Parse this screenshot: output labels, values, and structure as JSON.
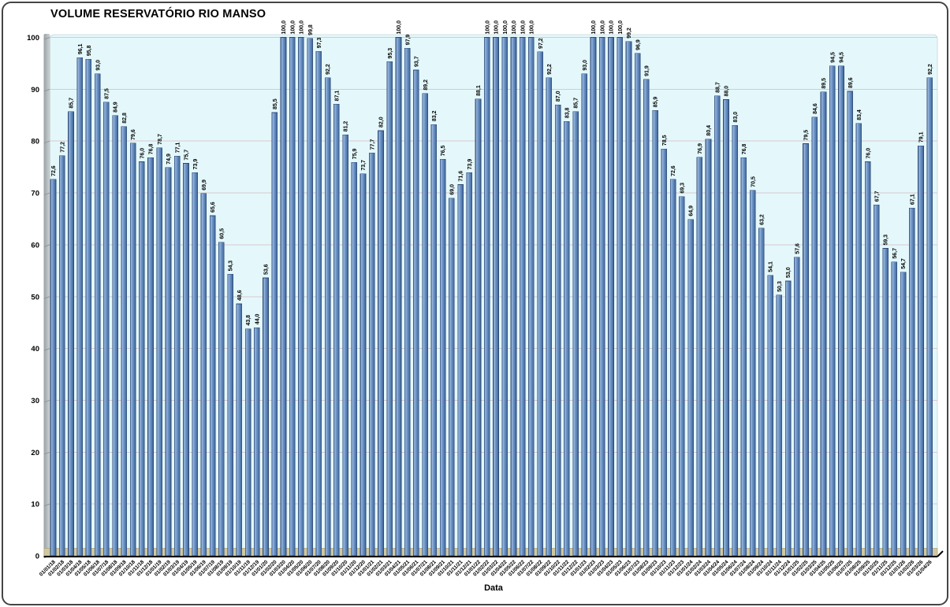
{
  "chart_data": {
    "type": "bar",
    "title": "VOLUME RESERVATÓRIO RIO MANSO",
    "xlabel": "Data",
    "ylabel": "",
    "ylim": [
      0,
      100
    ],
    "yticks": [
      0,
      10,
      20,
      30,
      40,
      50,
      60,
      70,
      80,
      90,
      100
    ],
    "grid": true,
    "legend": false,
    "value_label_rotation": 90,
    "x_label_rotation": 45,
    "decimal_separator": ",",
    "categories": [
      "01/01/18",
      "01/02/18",
      "01/03/18",
      "01/04/18",
      "01/05/18",
      "01/06/18",
      "01/07/18",
      "01/08/18",
      "01/09/18",
      "01/10/18",
      "01/11/18",
      "01/12/18",
      "01/01/19",
      "01/02/19",
      "01/03/19",
      "01/04/19",
      "01/05/19",
      "01/06/19",
      "01/07/19",
      "01/08/19",
      "01/09/19",
      "01/10/19",
      "01/11/19",
      "01/12/19",
      "01/01/20",
      "01/02/20",
      "01/03/20",
      "01/04/20",
      "01/05/20",
      "01/06/20",
      "01/07/20",
      "01/08/20",
      "01/09/20",
      "01/10/20",
      "01/11/20",
      "01/12/20",
      "01/01/21",
      "01/02/21",
      "01/03/21",
      "01/04/21",
      "01/05/21",
      "01/06/21",
      "01/07/21",
      "01/08/21",
      "01/09/21",
      "01/10/21",
      "01/11/21",
      "01/12/21",
      "01/01/22",
      "01/02/22",
      "01/03/22",
      "01/04/22",
      "01/05/22",
      "01/06/22",
      "01/07/22",
      "01/08/22",
      "01/09/22",
      "01/10/22",
      "01/11/22",
      "01/12/22",
      "01/01/23",
      "01/02/23",
      "01/03/23",
      "01/04/23",
      "01/05/23",
      "01/06/23",
      "01/07/23",
      "01/08/23",
      "01/09/23",
      "01/10/23",
      "01/11/23",
      "01/12/23",
      "01/01/24",
      "01/02/24",
      "01/03/24",
      "01/04/24",
      "01/05/24",
      "01/06/24",
      "01/07/24",
      "01/08/24",
      "01/09/24",
      "01/10/24",
      "01/11/24",
      "01/12/24",
      "01/01/25",
      "01/02/25",
      "01/03/25",
      "01/04/25",
      "01/05/25",
      "01/06/25",
      "01/07/25",
      "01/08/25",
      "01/09/25",
      "01/10/25",
      "01/11/25",
      "01/12/25",
      "01/01/26",
      "01/02/26",
      "01/03/26",
      "01/04/26"
    ],
    "values": [
      72.6,
      77.2,
      85.7,
      96.1,
      95.8,
      93.0,
      87.5,
      84.9,
      82.8,
      79.6,
      76.0,
      76.8,
      78.7,
      74.9,
      77.1,
      75.7,
      73.9,
      69.9,
      65.6,
      60.5,
      54.3,
      48.6,
      43.8,
      44.0,
      53.6,
      85.5,
      100.0,
      100.0,
      100.0,
      99.8,
      97.3,
      92.2,
      87.1,
      81.2,
      75.9,
      73.7,
      77.7,
      82.0,
      95.3,
      100.0,
      97.9,
      93.7,
      89.2,
      83.2,
      76.5,
      69.0,
      71.6,
      73.9,
      88.1,
      100.0,
      100.0,
      100.0,
      100.0,
      100.0,
      100.0,
      97.2,
      92.2,
      87.0,
      83.8,
      85.7,
      93.0,
      100.0,
      100.0,
      100.0,
      100.0,
      99.2,
      96.9,
      91.9,
      85.9,
      78.5,
      72.6,
      69.3,
      64.9,
      76.9,
      80.4,
      88.7,
      88.0,
      83.0,
      76.8,
      70.5,
      63.2,
      54.1,
      50.3,
      53.0,
      57.6,
      79.5,
      84.6,
      89.5,
      94.5,
      94.5,
      89.6,
      83.4,
      76.0,
      67.7,
      59.3,
      56.7,
      54.7,
      67.1,
      79.1,
      92.2
    ],
    "colors": {
      "bar_fill": "#6189BE",
      "bar_highlight": "#9FBADF",
      "bar_edge": "#2E4A74",
      "plot_bg": "#E4F8FB",
      "grid": "#D9C9CC",
      "wall": "#AEB5B8",
      "floor": "#D0C89F",
      "axis_line": "#000000",
      "text": "#000000"
    }
  }
}
